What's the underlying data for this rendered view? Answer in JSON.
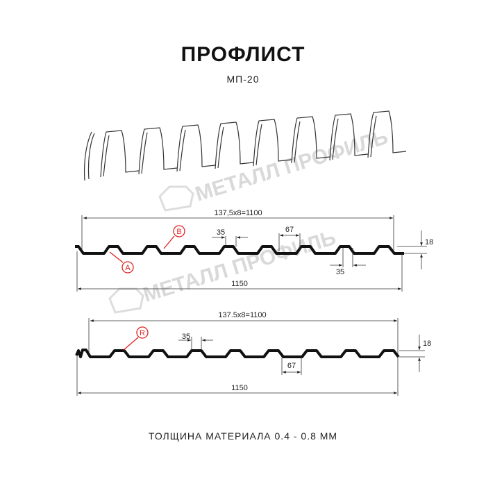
{
  "header": {
    "title": "ПРОФЛИСТ",
    "model": "МП-20"
  },
  "watermark": "МЕТАЛЛ ПРОФИЛЬ",
  "profile1": {
    "overall_width": "137,5x8=1100",
    "total_width": "1150",
    "rib_top": "35",
    "rib_bottom": "35",
    "rib_pitch": "67",
    "height": "18",
    "label_a": "A",
    "label_b": "B"
  },
  "profile2": {
    "overall_width": "137.5x8=1100",
    "total_width": "1150",
    "rib_top": "35",
    "rib_pitch": "67",
    "height": "18",
    "label_r": "R"
  },
  "footer": {
    "thickness": "ТОЛЩИНА МАТЕРИАЛА 0.4 - 0.8 ММ"
  },
  "colors": {
    "line": "#111111",
    "callout": "#e02020",
    "watermark": "#d8d8d8"
  }
}
